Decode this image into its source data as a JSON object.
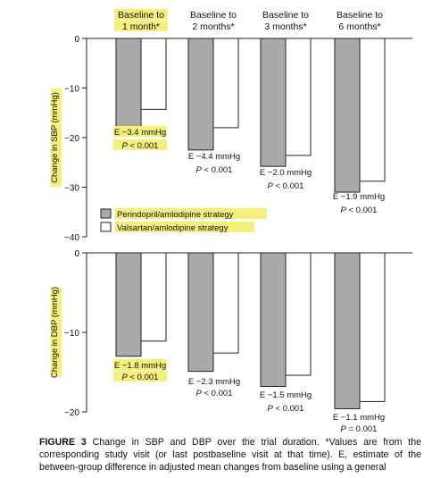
{
  "colors": {
    "perindopril": "#a9a9a9",
    "valsartan": "#ffffff",
    "highlight": "#f5f079",
    "stroke": "#222222"
  },
  "chart_data": [
    {
      "type": "bar",
      "ylabel": "Change in SBP (mmHg)",
      "ylim": [
        -40,
        0
      ],
      "yticks": [
        0,
        -10,
        -20,
        -30,
        -40
      ],
      "categories": [
        "Baseline to 1 month*",
        "Baseline to 2 months*",
        "Baseline to 3 months*",
        "Baseline to 6 months*"
      ],
      "category_lines": [
        [
          "Baseline to",
          "1 month*"
        ],
        [
          "Baseline to",
          "2 months*"
        ],
        [
          "Baseline to",
          "3 months*"
        ],
        [
          "Baseline to",
          "6 months*"
        ]
      ],
      "series": [
        {
          "name": "Perindopril/amlodipine strategy",
          "values": [
            -18.0,
            -22.5,
            -25.8,
            -31.0
          ]
        },
        {
          "name": "Valsartan/amlodipine strategy",
          "values": [
            -14.3,
            -18.0,
            -23.6,
            -28.8
          ]
        }
      ],
      "annotations": [
        {
          "estimate": "E −3.4 mmHg",
          "p": "P < 0.001"
        },
        {
          "estimate": "E −4.4 mmHg",
          "p": "P < 0.001"
        },
        {
          "estimate": "E −2.0 mmHg",
          "p": "P < 0.001"
        },
        {
          "estimate": "E −1.9 mmHg",
          "p": "P < 0.001"
        }
      ],
      "legend": [
        "Perindopril/amlodipine strategy",
        "Valsartan/amlodipine strategy"
      ],
      "legend_position": "bottom-left",
      "grid": false
    },
    {
      "type": "bar",
      "ylabel": "Change in DBP (mmHg)",
      "ylim": [
        -20,
        0
      ],
      "yticks": [
        0,
        -10,
        -20
      ],
      "categories": [
        "Baseline to 1 month*",
        "Baseline to 2 months*",
        "Baseline to 3 months*",
        "Baseline to 6 months*"
      ],
      "series": [
        {
          "name": "Perindopril/amlodipine strategy",
          "values": [
            -13.0,
            -14.9,
            -16.8,
            -19.6
          ]
        },
        {
          "name": "Valsartan/amlodipine strategy",
          "values": [
            -11.1,
            -12.6,
            -15.4,
            -18.7
          ]
        }
      ],
      "annotations": [
        {
          "estimate": "E −1.8 mmHg",
          "p": "P < 0.001"
        },
        {
          "estimate": "E −2.3 mmHg",
          "p": "P < 0.001"
        },
        {
          "estimate": "E −1.5 mmHg",
          "p": "P < 0.001"
        },
        {
          "estimate": "E −1.1 mmHg",
          "p": "P = 0.001"
        }
      ],
      "grid": false
    }
  ],
  "caption": {
    "label": "FIGURE 3",
    "text": "Change in SBP and DBP over the trial duration. *Values are from the corresponding study visit (or last postbaseline visit at that time). E, estimate of the between-group difference in adjusted mean changes from baseline using a general"
  }
}
